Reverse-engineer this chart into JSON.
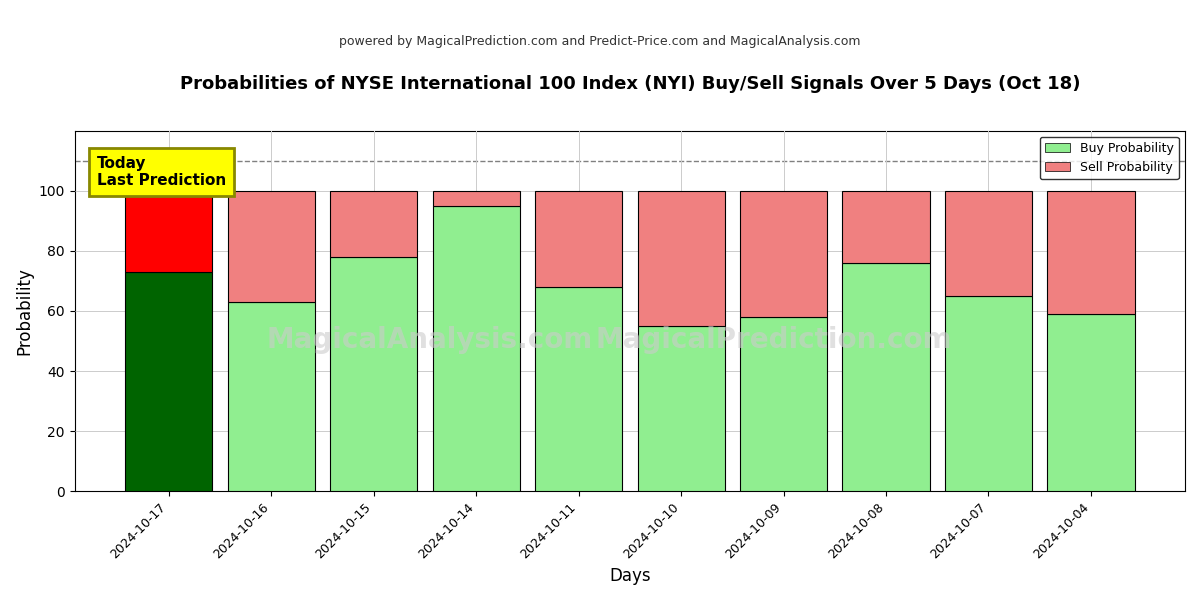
{
  "title": "Probabilities of NYSE International 100 Index (NYI) Buy/Sell Signals Over 5 Days (Oct 18)",
  "subtitle": "powered by MagicalPrediction.com and Predict-Price.com and MagicalAnalysis.com",
  "xlabel": "Days",
  "ylabel": "Probability",
  "dates": [
    "2024-10-17",
    "2024-10-16",
    "2024-10-15",
    "2024-10-14",
    "2024-10-11",
    "2024-10-10",
    "2024-10-09",
    "2024-10-08",
    "2024-10-07",
    "2024-10-04"
  ],
  "buy_values": [
    73,
    63,
    78,
    95,
    68,
    55,
    58,
    76,
    65,
    59
  ],
  "sell_values": [
    27,
    37,
    22,
    5,
    32,
    45,
    42,
    24,
    35,
    41
  ],
  "buy_colors": [
    "#006400",
    "#90EE90",
    "#90EE90",
    "#90EE90",
    "#90EE90",
    "#90EE90",
    "#90EE90",
    "#90EE90",
    "#90EE90",
    "#90EE90"
  ],
  "sell_colors": [
    "#FF0000",
    "#F08080",
    "#F08080",
    "#F08080",
    "#F08080",
    "#F08080",
    "#F08080",
    "#F08080",
    "#F08080",
    "#F08080"
  ],
  "today_box_color": "#FFFF00",
  "today_box_text": "Today\nLast Prediction",
  "dashed_line_y": 110,
  "ylim": [
    0,
    120
  ],
  "yticks": [
    0,
    20,
    40,
    60,
    80,
    100
  ],
  "background_color": "#ffffff",
  "grid_color": "#cccccc",
  "legend_buy_color": "#90EE90",
  "legend_sell_color": "#F08080",
  "bar_width": 0.85,
  "bar_edge_color": "#000000",
  "watermark1": "MagicalAnalysis.com",
  "watermark2": "MagicalPrediction.com",
  "watermark_color": "#cccccc",
  "watermark_fontsize": 20
}
